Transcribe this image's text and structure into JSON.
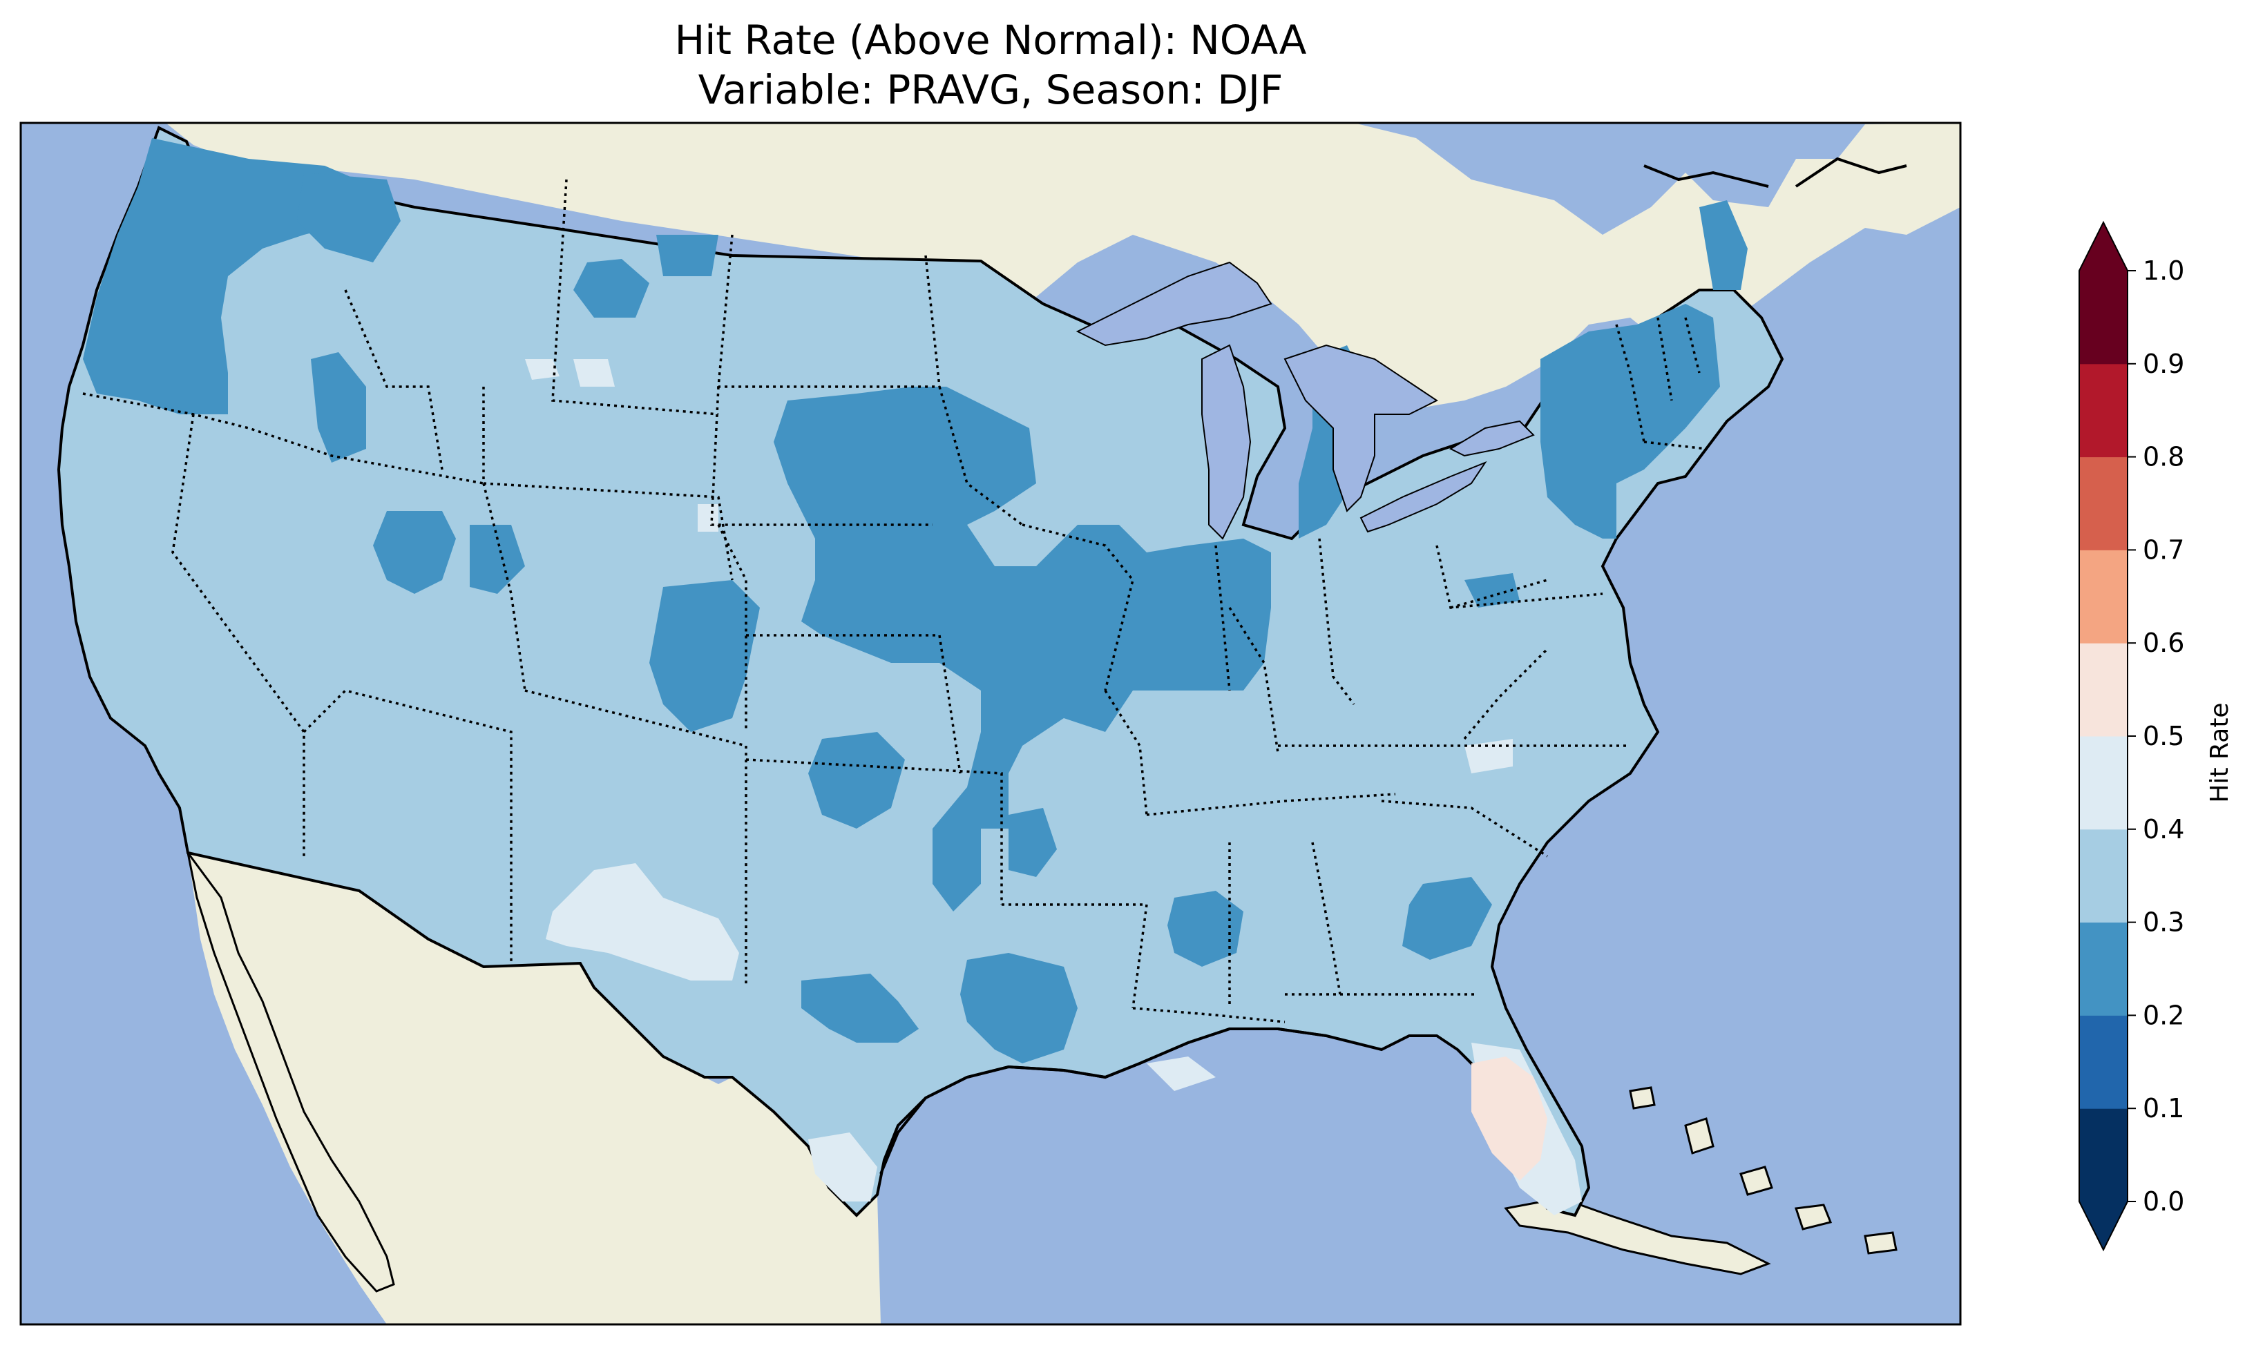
{
  "title": {
    "line1": "Hit Rate (Above Normal): NOAA",
    "line2": "Variable: PRAVG, Season: DJF"
  },
  "colors": {
    "ocean": "#98b5e0",
    "land": "#efeedc",
    "lake": "#9fb6e2",
    "state_border": "#000000",
    "coast": "#000000"
  },
  "colorbar": {
    "label": "Hit Rate",
    "ticks": [
      "0.0",
      "0.1",
      "0.2",
      "0.3",
      "0.4",
      "0.5",
      "0.6",
      "0.7",
      "0.8",
      "0.9",
      "1.0"
    ],
    "bins": [
      {
        "range": [
          0.0,
          0.1
        ],
        "color": "#053061"
      },
      {
        "range": [
          0.1,
          0.2
        ],
        "color": "#2166ac"
      },
      {
        "range": [
          0.2,
          0.3
        ],
        "color": "#4393c3"
      },
      {
        "range": [
          0.3,
          0.4
        ],
        "color": "#a6cde3"
      },
      {
        "range": [
          0.4,
          0.5
        ],
        "color": "#deebf3"
      },
      {
        "range": [
          0.5,
          0.6
        ],
        "color": "#f7e4dc"
      },
      {
        "range": [
          0.6,
          0.7
        ],
        "color": "#f4a582"
      },
      {
        "range": [
          0.7,
          0.8
        ],
        "color": "#d6604d"
      },
      {
        "range": [
          0.8,
          0.9
        ],
        "color": "#b2182b"
      },
      {
        "range": [
          0.9,
          1.0
        ],
        "color": "#67001f"
      }
    ],
    "extend": "both",
    "under_color": "#053061",
    "over_color": "#67001f"
  },
  "map_data": {
    "type": "gridded-map",
    "region": "Contiguous United States",
    "dominant_bin": [
      0.3,
      0.4
    ],
    "regions_bin_0_2_0_3": [
      "Pacific Northwest",
      "Northern Idaho",
      "Central Montana",
      "Eastern South Dakota",
      "Nebraska",
      "Iowa",
      "Missouri",
      "Illinois",
      "Northeastern Colorado",
      "Oklahoma",
      "Louisiana / Arkansas",
      "Michigan",
      "Pennsylvania / New York",
      "New England",
      "Northern Georgia",
      "Southern Texas"
    ],
    "regions_bin_0_4_0_5": [
      "Western Texas",
      "Southern Texas",
      "Florida Keys",
      "Gulf Coast"
    ],
    "regions_bin_0_5_0_6": [
      "Central Florida"
    ]
  }
}
